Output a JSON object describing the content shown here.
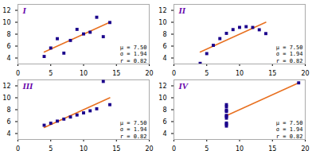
{
  "chart_data": [
    {
      "type": "scatter",
      "title": "I",
      "annotations": [
        "μ = 7.50\nσ = 1.94\nr = 0.82"
      ],
      "xlim": [
        0,
        20
      ],
      "ylim": [
        3,
        13
      ],
      "xticks": [
        0,
        5,
        10,
        15,
        20
      ],
      "yticks": [
        4,
        6,
        8,
        10,
        12
      ],
      "grid": false,
      "series": [
        {
          "type": "scatter",
          "color": "#1a008c",
          "marker": "square",
          "x": [
            10,
            8,
            13,
            9,
            11,
            14,
            6,
            4,
            12,
            7,
            5
          ],
          "values": [
            8.04,
            6.95,
            7.58,
            8.81,
            8.33,
            9.96,
            7.24,
            4.26,
            10.84,
            4.82,
            5.68
          ]
        },
        {
          "type": "line",
          "color": "#e87020",
          "x": [
            4,
            14
          ],
          "values": [
            5.000455,
            10.001364
          ]
        }
      ]
    },
    {
      "type": "scatter",
      "title": "II",
      "annotations": [
        "μ = 7.50\nσ = 1.94\nr = 0.82"
      ],
      "xlim": [
        0,
        20
      ],
      "ylim": [
        3,
        13
      ],
      "xticks": [
        0,
        5,
        10,
        15,
        20
      ],
      "yticks": [
        4,
        6,
        8,
        10,
        12
      ],
      "grid": false,
      "series": [
        {
          "type": "scatter",
          "color": "#1a008c",
          "marker": "square",
          "x": [
            10,
            8,
            13,
            9,
            11,
            14,
            6,
            4,
            12,
            7,
            5
          ],
          "values": [
            9.14,
            8.14,
            8.74,
            8.77,
            9.26,
            8.1,
            6.13,
            3.1,
            9.13,
            7.26,
            4.74
          ]
        },
        {
          "type": "line",
          "color": "#e87020",
          "x": [
            4,
            14
          ],
          "values": [
            5.000909,
            10.000909
          ]
        }
      ]
    },
    {
      "type": "scatter",
      "title": "III",
      "annotations": [
        "μ = 7.50\nσ = 1.94\nr = 0.82"
      ],
      "xlim": [
        0,
        20
      ],
      "ylim": [
        3,
        13
      ],
      "xticks": [
        0,
        5,
        10,
        15,
        20
      ],
      "yticks": [
        4,
        6,
        8,
        10,
        12
      ],
      "grid": false,
      "series": [
        {
          "type": "scatter",
          "color": "#1a008c",
          "marker": "square",
          "x": [
            10,
            8,
            13,
            9,
            11,
            14,
            6,
            4,
            12,
            7,
            5
          ],
          "values": [
            7.46,
            6.77,
            12.74,
            7.11,
            7.81,
            8.84,
            6.08,
            5.39,
            8.15,
            6.42,
            5.73
          ]
        },
        {
          "type": "line",
          "color": "#e87020",
          "x": [
            4,
            14
          ],
          "values": [
            5.001364,
            9.998636
          ]
        }
      ]
    },
    {
      "type": "scatter",
      "title": "IV",
      "annotations": [
        "μ = 7.50\nσ = 1.94\nr = 0.82"
      ],
      "xlim": [
        0,
        20
      ],
      "ylim": [
        3,
        13
      ],
      "xticks": [
        0,
        5,
        10,
        15,
        20
      ],
      "yticks": [
        4,
        6,
        8,
        10,
        12
      ],
      "grid": false,
      "series": [
        {
          "type": "scatter",
          "color": "#1a008c",
          "marker": "square",
          "x": [
            8,
            8,
            8,
            8,
            8,
            8,
            8,
            19,
            8,
            8,
            8
          ],
          "values": [
            6.58,
            5.76,
            7.71,
            8.84,
            8.47,
            7.04,
            5.25,
            12.5,
            5.56,
            7.91,
            6.89
          ]
        },
        {
          "type": "line",
          "color": "#e87020",
          "x": [
            8,
            19
          ],
          "values": [
            7.001,
            12.5
          ]
        }
      ]
    }
  ]
}
